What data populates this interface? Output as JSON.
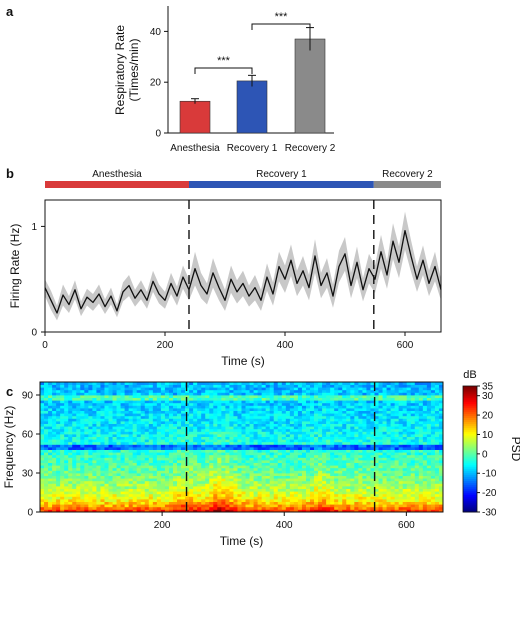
{
  "panels": {
    "a": {
      "letter": "a"
    },
    "b": {
      "letter": "b"
    },
    "c": {
      "letter": "c"
    }
  },
  "colors": {
    "anesthesia": "#d93a3a",
    "recovery1": "#2d55b5",
    "recovery2": "#8a8a8a",
    "trace": "#111111",
    "band": "#c8c8c8"
  },
  "chart_data": [
    {
      "panel": "a",
      "type": "bar",
      "categories": [
        "Anesthesia",
        "Recovery 1",
        "Recovery 2"
      ],
      "values": [
        12.5,
        20.5,
        37
      ],
      "errors": [
        1,
        2.2,
        4.5
      ],
      "colors": [
        "#d93a3a",
        "#2d55b5",
        "#8a8a8a"
      ],
      "ylabel": "Respiratory Rate\n(Times/min)",
      "ylabel_lines": [
        "Respiratory Rate",
        "(Times/min)"
      ],
      "ylim": [
        0,
        50
      ],
      "yticks": [
        0,
        20,
        40
      ],
      "significance": [
        {
          "from": "Anesthesia",
          "to": "Recovery 1",
          "label": "***"
        },
        {
          "from": "Recovery 1",
          "to": "Recovery 2",
          "label": "***"
        }
      ]
    },
    {
      "panel": "b",
      "type": "line",
      "title": "",
      "xlabel": "Time (s)",
      "ylabel": "Firing Rate (Hz)",
      "xlim": [
        0,
        660
      ],
      "ylim": [
        0,
        1.25
      ],
      "xticks": [
        0,
        200,
        400,
        600
      ],
      "yticks": [
        0,
        1
      ],
      "phases": [
        {
          "name": "Anesthesia",
          "start": 0,
          "end": 240
        },
        {
          "name": "Recovery 1",
          "start": 240,
          "end": 548
        },
        {
          "name": "Recovery 2",
          "start": 548,
          "end": 660
        }
      ],
      "dashed_lines_x": [
        240,
        548
      ],
      "series": [
        {
          "x": [
            0,
            10,
            20,
            30,
            40,
            50,
            60,
            70,
            80,
            90,
            100,
            110,
            120,
            130,
            140,
            150,
            160,
            170,
            180,
            190,
            200,
            210,
            220,
            230,
            240,
            250,
            260,
            270,
            280,
            290,
            300,
            310,
            320,
            330,
            340,
            350,
            360,
            370,
            380,
            390,
            400,
            410,
            420,
            430,
            440,
            450,
            460,
            470,
            480,
            490,
            500,
            510,
            520,
            530,
            540,
            550,
            560,
            570,
            580,
            590,
            600,
            610,
            620,
            630,
            640,
            650,
            660
          ],
          "y": [
            0.42,
            0.3,
            0.18,
            0.35,
            0.26,
            0.4,
            0.22,
            0.33,
            0.28,
            0.36,
            0.24,
            0.34,
            0.2,
            0.38,
            0.44,
            0.32,
            0.4,
            0.3,
            0.48,
            0.36,
            0.3,
            0.46,
            0.34,
            0.52,
            0.4,
            0.6,
            0.44,
            0.36,
            0.56,
            0.42,
            0.3,
            0.5,
            0.38,
            0.46,
            0.34,
            0.42,
            0.3,
            0.52,
            0.36,
            0.62,
            0.5,
            0.68,
            0.46,
            0.58,
            0.42,
            0.72,
            0.44,
            0.56,
            0.34,
            0.62,
            0.74,
            0.44,
            0.66,
            0.4,
            0.6,
            0.5,
            0.76,
            0.54,
            0.86,
            0.66,
            0.96,
            0.72,
            0.5,
            0.68,
            0.46,
            0.62,
            0.4
          ],
          "band_half_width": [
            0.08,
            0.09,
            0.07,
            0.1,
            0.08,
            0.09,
            0.07,
            0.08,
            0.08,
            0.09,
            0.07,
            0.08,
            0.06,
            0.09,
            0.1,
            0.08,
            0.09,
            0.08,
            0.1,
            0.09,
            0.08,
            0.1,
            0.09,
            0.11,
            0.1,
            0.16,
            0.12,
            0.1,
            0.14,
            0.12,
            0.1,
            0.13,
            0.11,
            0.12,
            0.1,
            0.12,
            0.1,
            0.13,
            0.11,
            0.14,
            0.13,
            0.15,
            0.12,
            0.14,
            0.12,
            0.16,
            0.12,
            0.14,
            0.11,
            0.15,
            0.16,
            0.12,
            0.15,
            0.11,
            0.14,
            0.13,
            0.16,
            0.13,
            0.17,
            0.15,
            0.18,
            0.15,
            0.12,
            0.14,
            0.12,
            0.14,
            0.1
          ]
        }
      ]
    },
    {
      "panel": "c",
      "type": "heatmap",
      "xlabel": "Time (s)",
      "ylabel": "Frequency (Hz)",
      "xlim": [
        0,
        660
      ],
      "ylim": [
        0,
        100
      ],
      "xticks": [
        200,
        400,
        600
      ],
      "yticks": [
        0,
        30,
        60,
        90
      ],
      "dashed_lines_x": [
        240,
        548
      ],
      "colorbar": {
        "title": "dB",
        "label": "PSD",
        "range": [
          -30,
          35
        ],
        "ticks": [
          35,
          30,
          20,
          10,
          0,
          -10,
          -20,
          -30
        ]
      },
      "description_values": {
        "line_noise_hz": 50,
        "harmonic_band_hz": 88
      }
    }
  ]
}
